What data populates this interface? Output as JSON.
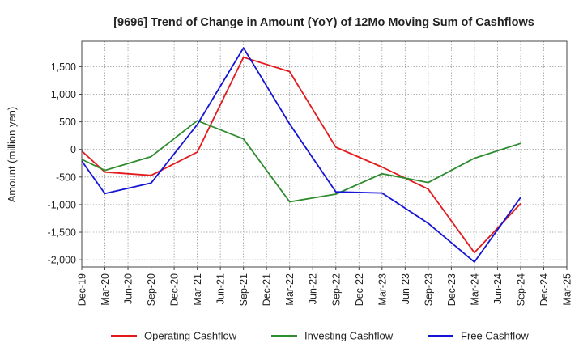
{
  "chart_data": {
    "type": "line",
    "title": "[9696]  Trend of Change in Amount (YoY) of 12Mo Moving Sum of Cashflows",
    "xlabel": "",
    "ylabel": "Amount (million yen)",
    "categories": [
      "Dec-19",
      "Mar-20",
      "Jun-20",
      "Sep-20",
      "Dec-20",
      "Mar-21",
      "Jun-21",
      "Sep-21",
      "Dec-21",
      "Mar-22",
      "Jun-22",
      "Sep-22",
      "Dec-22",
      "Mar-23",
      "Jun-23",
      "Sep-23",
      "Dec-23",
      "Mar-24",
      "Jun-24",
      "Sep-24",
      "Dec-24",
      "Mar-25"
    ],
    "yticks": [
      -2000,
      -1500,
      -1000,
      -500,
      0,
      500,
      1000,
      1500
    ],
    "ytick_labels": [
      "-2,000",
      "-1,500",
      "-1,000",
      "-500",
      "0",
      "500",
      "1,000",
      "1,500"
    ],
    "ylim": [
      -2130,
      1960
    ],
    "grid": true,
    "legend_position": "bottom",
    "series": [
      {
        "name": "Operating Cashflow",
        "color": "#e31a1c",
        "values": [
          -30,
          -410,
          null,
          -470,
          null,
          -50,
          null,
          1670,
          null,
          1410,
          null,
          40,
          null,
          -320,
          null,
          -720,
          null,
          -1870,
          null,
          -980,
          null,
          null
        ]
      },
      {
        "name": "Investing Cashflow",
        "color": "#2e8b2e",
        "values": [
          -180,
          -380,
          null,
          -130,
          null,
          520,
          null,
          190,
          null,
          -950,
          null,
          -810,
          null,
          -440,
          null,
          -600,
          null,
          -160,
          null,
          110,
          null,
          null
        ]
      },
      {
        "name": "Free Cashflow",
        "color": "#1414d6",
        "values": [
          -210,
          -800,
          null,
          -610,
          null,
          450,
          null,
          1840,
          null,
          460,
          null,
          -770,
          null,
          -790,
          null,
          -1340,
          null,
          -2040,
          null,
          -870,
          null,
          null
        ]
      }
    ]
  }
}
